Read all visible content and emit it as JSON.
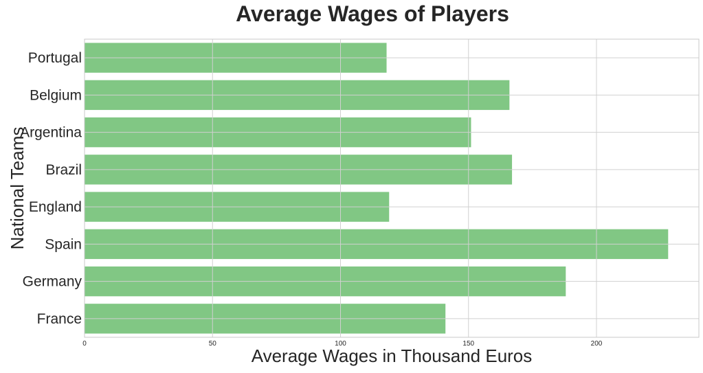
{
  "chart_data": {
    "type": "bar",
    "orientation": "horizontal",
    "title": "Average Wages of Players",
    "xlabel": "Average Wages in Thousand Euros",
    "ylabel": "National Teams",
    "categories": [
      "France",
      "Germany",
      "Spain",
      "England",
      "Brazil",
      "Argentina",
      "Belgium",
      "Portugal"
    ],
    "values": [
      141,
      188,
      228,
      119,
      167,
      151,
      166,
      118
    ],
    "xlim": [
      0,
      240
    ],
    "xticks": [
      0,
      50,
      100,
      150,
      200
    ],
    "xtick_labels": [
      "0",
      "50",
      "100",
      "150",
      "200"
    ],
    "grid": true,
    "bar_color": "#4caf50"
  }
}
